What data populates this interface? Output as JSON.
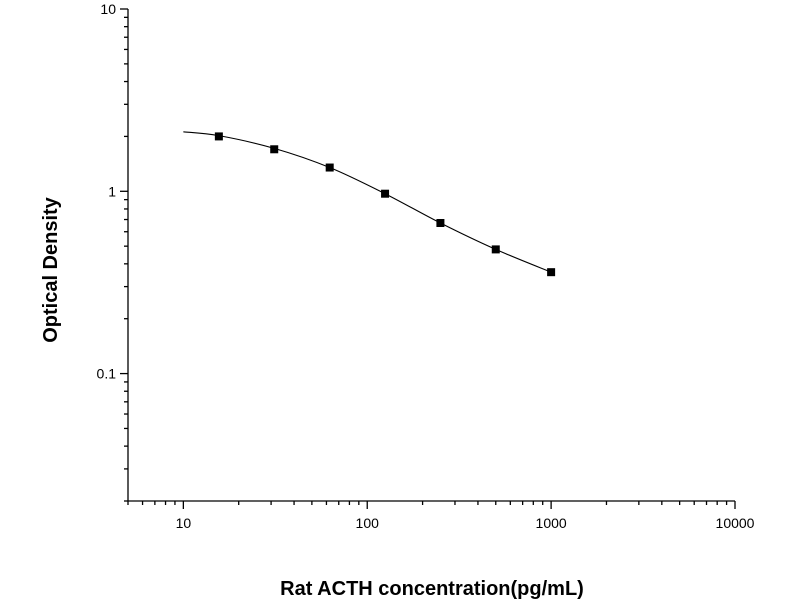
{
  "chart_data": {
    "type": "scatter",
    "title": "",
    "xlabel": "Rat ACTH concentration(pg/mL)",
    "ylabel": "Optical Density",
    "x_scale": "log",
    "y_scale": "log",
    "xlim": [
      5,
      10000
    ],
    "ylim": [
      0.02,
      10
    ],
    "x_ticks": [
      {
        "value": 10,
        "label": "10"
      },
      {
        "value": 100,
        "label": "100"
      },
      {
        "value": 1000,
        "label": "1000"
      },
      {
        "value": 10000,
        "label": "10000"
      }
    ],
    "y_ticks": [
      {
        "value": 0.1,
        "label": "0.1"
      },
      {
        "value": 1,
        "label": "1"
      },
      {
        "value": 10,
        "label": "10"
      }
    ],
    "grid": false,
    "legend": "none",
    "marker_color": "#000000",
    "series": [
      {
        "values": [
          {
            "x": 15.6,
            "y": 2.0
          },
          {
            "x": 31.2,
            "y": 1.7
          },
          {
            "x": 62.5,
            "y": 1.35
          },
          {
            "x": 125,
            "y": 0.97
          },
          {
            "x": 250,
            "y": 0.67
          },
          {
            "x": 500,
            "y": 0.48
          },
          {
            "x": 1000,
            "y": 0.36
          }
        ]
      }
    ],
    "fit_curve": {
      "x": [
        10,
        15.6,
        31.2,
        62.5,
        125,
        250,
        500,
        1000
      ],
      "y": [
        2.12,
        2.02,
        1.72,
        1.35,
        0.97,
        0.67,
        0.48,
        0.36
      ]
    }
  }
}
